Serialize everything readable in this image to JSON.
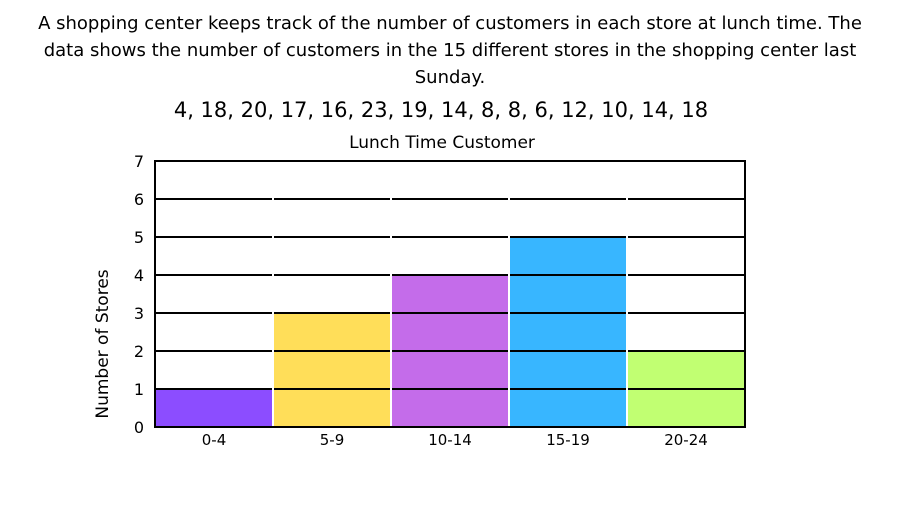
{
  "problem": {
    "text": "A shopping center keeps track of the number of customers in each store at lunch time. The data shows the number of customers in the 15 different stores in the shopping center last Sunday."
  },
  "data_list": "4, 18, 20, 17, 16, 23, 19, 14, 8, 8, 6, 12, 10, 14, 18",
  "chart_data": {
    "type": "bar",
    "title": "Lunch Time Customer",
    "xlabel": "",
    "ylabel": "Number of Stores",
    "categories": [
      "0-4",
      "5-9",
      "10-14",
      "15-19",
      "20-24"
    ],
    "values": [
      1,
      3,
      4,
      5,
      2
    ],
    "ylim": [
      0,
      7
    ],
    "yticks": [
      0,
      1,
      2,
      3,
      4,
      5,
      6,
      7
    ],
    "grid": true,
    "colors": [
      "#8c4dff",
      "#ffde59",
      "#c46cea",
      "#38b6ff",
      "#c1ff72"
    ]
  }
}
